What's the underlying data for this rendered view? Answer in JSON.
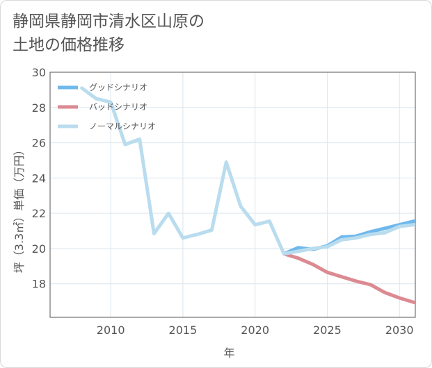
{
  "title_line1": "静岡県静岡市清水区山原の",
  "title_line2": "土地の価格推移",
  "colors": {
    "good": "#6fb8eb",
    "bad": "#dc8a92",
    "normal": "#b9dcee",
    "grid": "#dbe6ee",
    "border": "#555555"
  },
  "chart_data": {
    "type": "line",
    "title": "静岡県静岡市清水区山原の土地の価格推移",
    "xlabel": "年",
    "ylabel": "坪（3.3㎡）単価（万円）",
    "xlim": [
      2005.8,
      2031.1
    ],
    "ylim": [
      16.1,
      30
    ],
    "x_ticks": [
      2010,
      2015,
      2020,
      2025,
      2030
    ],
    "y_ticks": [
      18,
      20,
      22,
      24,
      26,
      28,
      30
    ],
    "legend_position": "top-left",
    "series": [
      {
        "name": "グッドシナリオ",
        "key": "good",
        "x": [
          2022,
          2023,
          2024,
          2025,
          2026,
          2027,
          2028,
          2029,
          2030,
          2031
        ],
        "y": [
          19.7,
          20.05,
          19.95,
          20.15,
          20.65,
          20.7,
          20.95,
          21.15,
          21.35,
          21.55
        ]
      },
      {
        "name": "バッドシナリオ",
        "key": "bad",
        "x": [
          2022,
          2023,
          2024,
          2025,
          2026,
          2027,
          2028,
          2029,
          2030,
          2031
        ],
        "y": [
          19.7,
          19.45,
          19.1,
          18.65,
          18.4,
          18.15,
          17.95,
          17.5,
          17.2,
          16.95
        ]
      },
      {
        "name": "ノーマルシナリオ",
        "key": "normal",
        "x": [
          2008,
          2009,
          2010,
          2011,
          2012,
          2013,
          2014,
          2015,
          2016,
          2017,
          2018,
          2019,
          2020,
          2021,
          2022,
          2023,
          2024,
          2025,
          2026,
          2027,
          2028,
          2029,
          2030,
          2031
        ],
        "y": [
          29.1,
          28.5,
          28.3,
          25.9,
          26.2,
          20.85,
          22.0,
          20.6,
          20.8,
          21.05,
          24.9,
          22.4,
          21.35,
          21.55,
          19.7,
          19.85,
          20.0,
          20.1,
          20.5,
          20.6,
          20.8,
          20.9,
          21.25,
          21.35
        ]
      }
    ]
  }
}
